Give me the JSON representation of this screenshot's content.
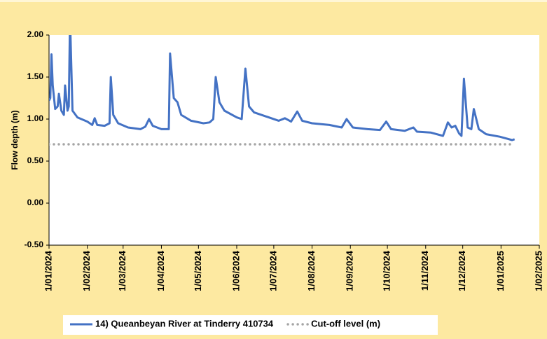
{
  "chart_data": {
    "type": "line",
    "ylabel": "Flow depth (m)",
    "ylim": [
      -0.5,
      2.0
    ],
    "yticks": [
      {
        "value": -0.5,
        "label": "-0.50"
      },
      {
        "value": 0,
        "label": "0.00"
      },
      {
        "value": 0.5,
        "label": "0.50"
      },
      {
        "value": 1,
        "label": "1.00"
      },
      {
        "value": 1.5,
        "label": "1.50"
      },
      {
        "value": 2,
        "label": "2.00"
      }
    ],
    "xlim": [
      "2024-01-01",
      "2025-02-01"
    ],
    "xticks": [
      {
        "value": "2024-01-01",
        "label": "1/01/2024"
      },
      {
        "value": "2024-02-01",
        "label": "1/02/2024"
      },
      {
        "value": "2024-03-01",
        "label": "1/03/2024"
      },
      {
        "value": "2024-04-01",
        "label": "1/04/2024"
      },
      {
        "value": "2024-05-01",
        "label": "1/05/2024"
      },
      {
        "value": "2024-06-01",
        "label": "1/06/2024"
      },
      {
        "value": "2024-07-01",
        "label": "1/07/2024"
      },
      {
        "value": "2024-08-01",
        "label": "1/08/2024"
      },
      {
        "value": "2024-09-01",
        "label": "1/09/2024"
      },
      {
        "value": "2024-10-01",
        "label": "1/10/2024"
      },
      {
        "value": "2024-11-01",
        "label": "1/11/2024"
      },
      {
        "value": "2024-12-01",
        "label": "1/12/2024"
      },
      {
        "value": "2025-01-01",
        "label": "1/01/2025"
      },
      {
        "value": "2025-02-01",
        "label": "1/02/2025"
      }
    ],
    "series": [
      {
        "name": "14) Queanbeyan River at Tinderry 410734",
        "color": "#4472c4",
        "style": "solid",
        "x": [
          "2024-01-01",
          "2024-01-02",
          "2024-01-03",
          "2024-01-04",
          "2024-01-06",
          "2024-01-08",
          "2024-01-09",
          "2024-01-11",
          "2024-01-13",
          "2024-01-14",
          "2024-01-16",
          "2024-01-17",
          "2024-01-18",
          "2024-01-20",
          "2024-01-24",
          "2024-02-01",
          "2024-02-05",
          "2024-02-07",
          "2024-02-09",
          "2024-02-15",
          "2024-02-19",
          "2024-02-20",
          "2024-02-22",
          "2024-02-26",
          "2024-03-05",
          "2024-03-15",
          "2024-03-19",
          "2024-03-22",
          "2024-03-25",
          "2024-04-01",
          "2024-04-07",
          "2024-04-08",
          "2024-04-11",
          "2024-04-14",
          "2024-04-17",
          "2024-04-25",
          "2024-05-05",
          "2024-05-10",
          "2024-05-13",
          "2024-05-15",
          "2024-05-18",
          "2024-05-22",
          "2024-06-01",
          "2024-06-05",
          "2024-06-08",
          "2024-06-11",
          "2024-06-15",
          "2024-06-25",
          "2024-07-05",
          "2024-07-10",
          "2024-07-15",
          "2024-07-20",
          "2024-07-24",
          "2024-08-01",
          "2024-08-15",
          "2024-08-25",
          "2024-08-29",
          "2024-09-03",
          "2024-09-15",
          "2024-09-25",
          "2024-09-30",
          "2024-10-04",
          "2024-10-15",
          "2024-10-22",
          "2024-10-25",
          "2024-11-05",
          "2024-11-15",
          "2024-11-19",
          "2024-11-22",
          "2024-11-25",
          "2024-11-28",
          "2024-11-30",
          "2024-12-02",
          "2024-12-05",
          "2024-12-08",
          "2024-12-10",
          "2024-12-14",
          "2024-12-20",
          "2024-12-31",
          "2025-01-05",
          "2025-01-10",
          "2025-01-12"
        ],
        "values": [
          1.22,
          1.25,
          1.77,
          1.4,
          1.12,
          1.15,
          1.3,
          1.1,
          1.05,
          1.4,
          1.1,
          1.15,
          2.2,
          1.1,
          1.02,
          0.97,
          0.93,
          1.01,
          0.93,
          0.92,
          0.95,
          1.5,
          1.05,
          0.95,
          0.9,
          0.88,
          0.91,
          1.0,
          0.92,
          0.88,
          0.88,
          1.78,
          1.25,
          1.2,
          1.05,
          0.98,
          0.95,
          0.96,
          1.0,
          1.5,
          1.2,
          1.1,
          1.02,
          1.0,
          1.6,
          1.15,
          1.08,
          1.03,
          0.98,
          1.01,
          0.97,
          1.09,
          0.98,
          0.95,
          0.93,
          0.9,
          1.0,
          0.9,
          0.88,
          0.87,
          0.97,
          0.88,
          0.86,
          0.9,
          0.85,
          0.84,
          0.8,
          0.96,
          0.9,
          0.92,
          0.83,
          0.8,
          1.48,
          0.9,
          0.88,
          1.12,
          0.88,
          0.82,
          0.79,
          0.77,
          0.75,
          0.76
        ]
      },
      {
        "name": "Cut-off level (m)",
        "color": "#a5a5a5",
        "style": "dotted",
        "x": [
          "2024-01-01",
          "2025-01-12"
        ],
        "values": [
          0.7,
          0.7
        ]
      }
    ]
  }
}
